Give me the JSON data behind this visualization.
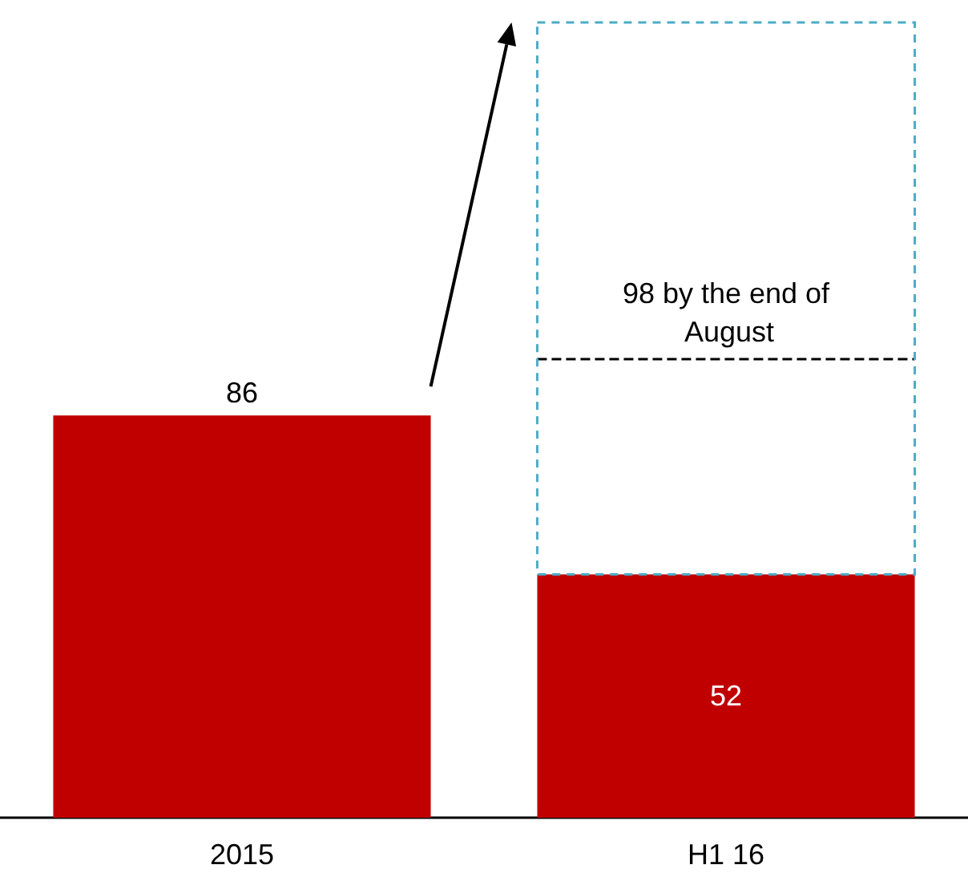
{
  "chart_data": {
    "type": "bar",
    "categories": [
      "2015",
      "H1 16"
    ],
    "values": [
      86,
      52
    ],
    "color": "#c00000",
    "data_labels": true,
    "ylim": [
      0,
      170
    ],
    "grid": false,
    "tick_labels": "x",
    "ref_lines": [
      {
        "axis": "y",
        "value": 98,
        "label": "98 by the end of August",
        "color": "#000000",
        "line_style": "dashed"
      }
    ]
  }
}
